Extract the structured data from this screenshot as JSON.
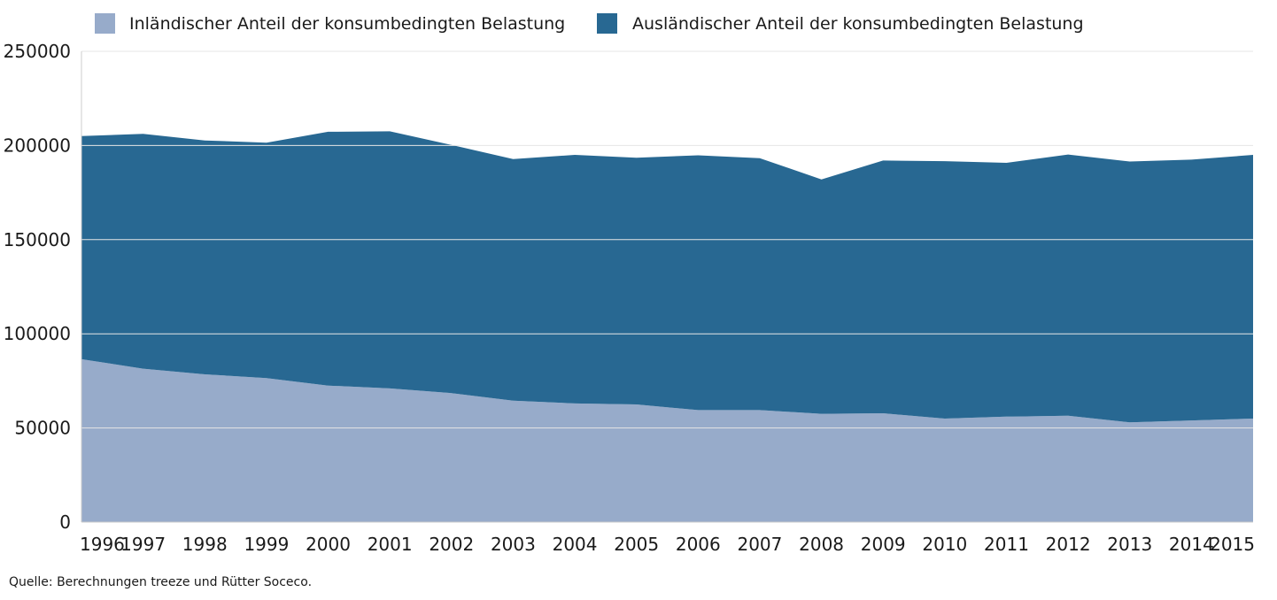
{
  "chart_data": {
    "type": "area",
    "stacked": true,
    "x": [
      1996,
      1997,
      1998,
      1999,
      2000,
      2001,
      2002,
      2003,
      2004,
      2005,
      2006,
      2007,
      2008,
      2009,
      2010,
      2011,
      2012,
      2013,
      2014,
      2015
    ],
    "x_tick_labels": [
      "1996",
      "1997",
      "1998",
      "1999",
      "2000",
      "2001",
      "2002",
      "2003",
      "2004",
      "2005",
      "2006",
      "2007",
      "2008",
      "2009",
      "2010",
      "2011",
      "2012",
      "2013",
      "2014",
      "2015"
    ],
    "series": [
      {
        "name": "Inländischer Anteil der konsumbedingten Belastung",
        "color": "#97abca",
        "values": [
          86500,
          81500,
          78500,
          76500,
          72500,
          71000,
          68500,
          64500,
          63000,
          62500,
          59500,
          59500,
          57500,
          57800,
          55000,
          56000,
          56500,
          53000,
          54000,
          55000
        ]
      },
      {
        "name": "Ausländischer Anteil der konsumbedingten Belastung",
        "color": "#286892",
        "values": [
          118500,
          124700,
          124200,
          125000,
          134800,
          136500,
          131800,
          128300,
          132000,
          131000,
          135300,
          133800,
          124500,
          134200,
          136700,
          134800,
          138700,
          138500,
          138500,
          140000
        ]
      }
    ],
    "stacked_totals": [
      205000,
      206200,
      202700,
      201500,
      207300,
      207500,
      200300,
      192800,
      195000,
      193500,
      194800,
      193300,
      182000,
      192000,
      191700,
      190800,
      195200,
      191500,
      192500,
      195000
    ],
    "ylim": [
      0,
      250000
    ],
    "y_ticks": [
      0,
      50000,
      100000,
      150000,
      200000,
      250000
    ],
    "y_tick_labels": [
      "0",
      "50000",
      "100000",
      "150000",
      "200000",
      "250000"
    ],
    "grid": "horizontal",
    "legend": "top-left",
    "source": "Quelle: Berechnungen treeze und Rütter Soceco."
  }
}
